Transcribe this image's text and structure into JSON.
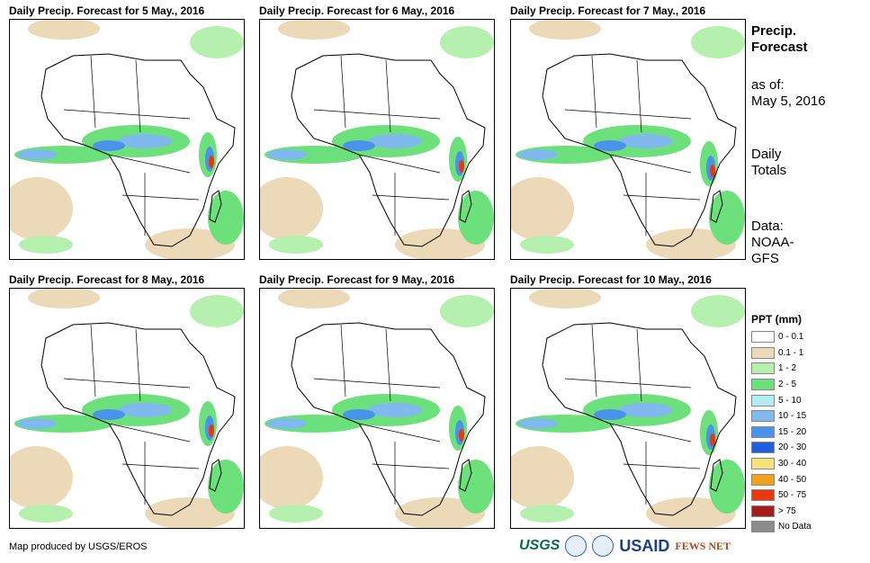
{
  "panels": [
    {
      "title": "Daily Precip. Forecast for 5 May., 2016"
    },
    {
      "title": "Daily Precip. Forecast for 6 May., 2016"
    },
    {
      "title": "Daily Precip. Forecast for 7 May., 2016"
    },
    {
      "title": "Daily Precip. Forecast for 8 May., 2016"
    },
    {
      "title": "Daily Precip. Forecast for 9 May., 2016"
    },
    {
      "title": "Daily Precip. Forecast for 10 May., 2016"
    }
  ],
  "side": {
    "heading_line1": "Precip.",
    "heading_line2": "Forecast",
    "asof_line1": "as of:",
    "asof_line2": "May 5, 2016",
    "totals_line1": "Daily",
    "totals_line2": "Totals",
    "data_line1": "Data:",
    "data_line2": "NOAA-",
    "data_line3": "GFS"
  },
  "legend": {
    "title": "PPT (mm)",
    "items": [
      {
        "label": "0 - 0.1",
        "color": "#ffffff"
      },
      {
        "label": "0.1 - 1",
        "color": "#ecd9b8"
      },
      {
        "label": "1 - 2",
        "color": "#b6f0ae"
      },
      {
        "label": "2 - 5",
        "color": "#6ce07a"
      },
      {
        "label": "5 - 10",
        "color": "#b4ecf4"
      },
      {
        "label": "10 - 15",
        "color": "#80b9ee"
      },
      {
        "label": "15 - 20",
        "color": "#4a93ea"
      },
      {
        "label": "20 - 30",
        "color": "#1f5fd8"
      },
      {
        "label": "30 - 40",
        "color": "#f6e27a"
      },
      {
        "label": "40 - 50",
        "color": "#f0a21c"
      },
      {
        "label": "50 - 75",
        "color": "#e8380d"
      },
      {
        "label": "> 75",
        "color": "#a41d1d"
      },
      {
        "label": "No Data",
        "color": "#8c8c8c"
      }
    ]
  },
  "credit": "Map produced by USGS/EROS",
  "logos": {
    "usgs": "USGS",
    "usaid": "USAID",
    "fews": "FEWS NET"
  }
}
